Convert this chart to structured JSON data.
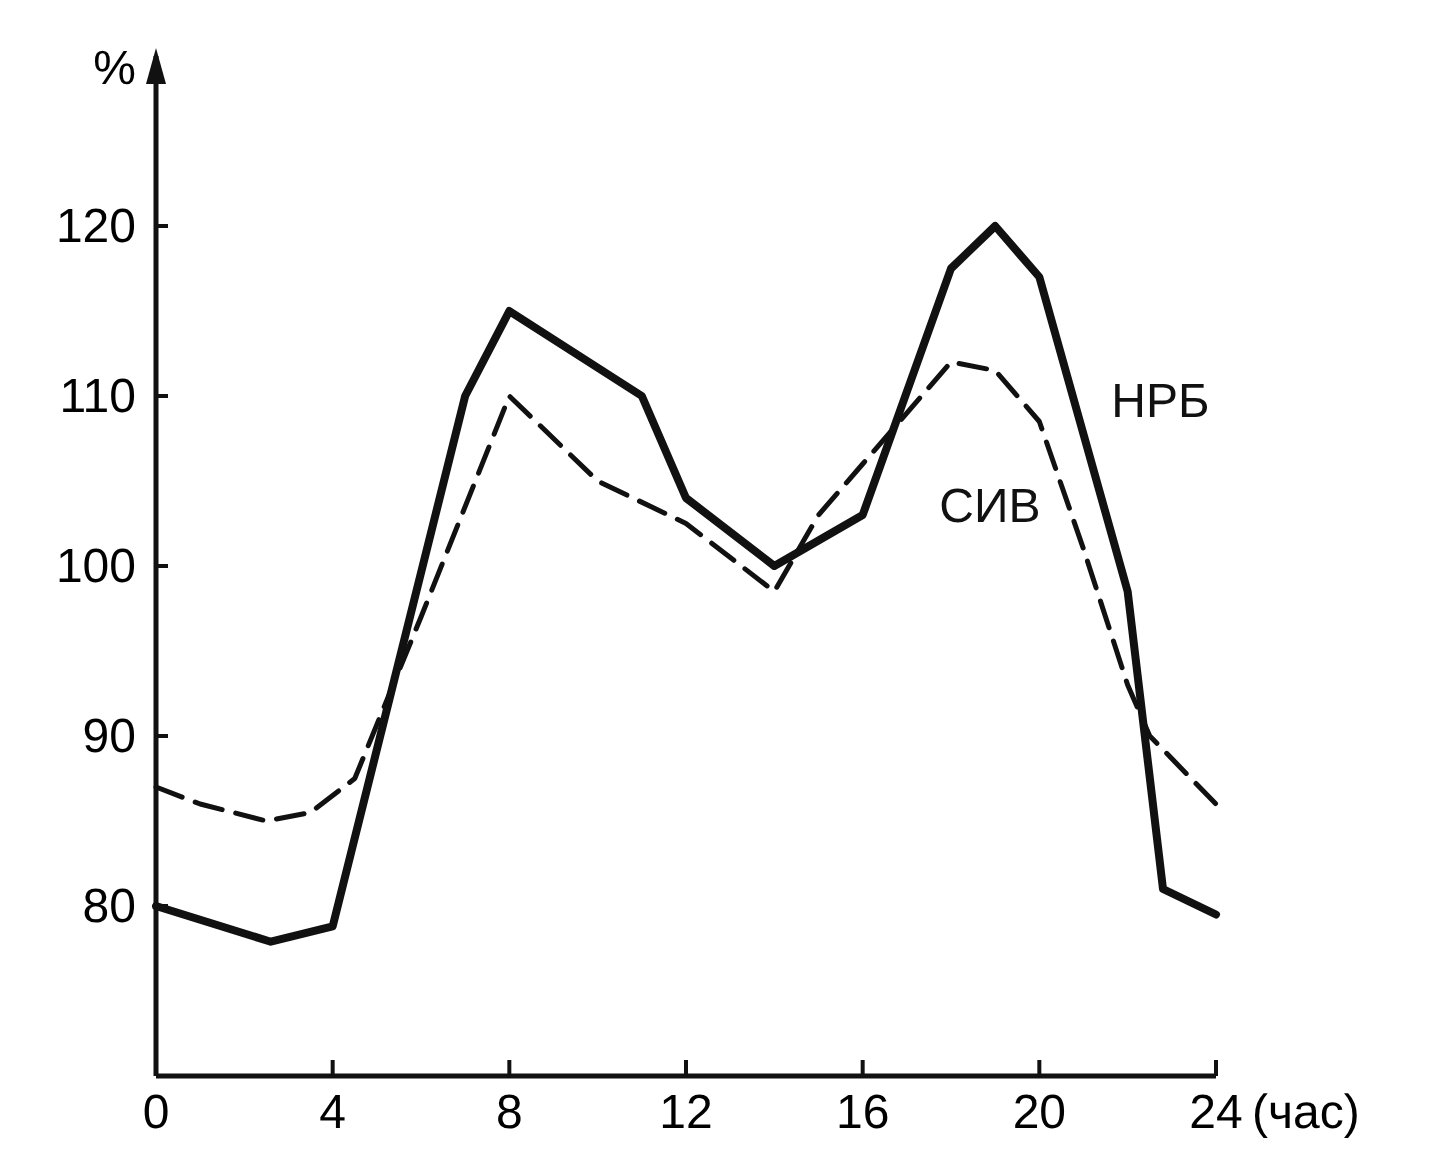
{
  "chart_data": {
    "type": "line",
    "ylabel": "%",
    "xlabel": "(час)",
    "xlim": [
      0,
      24
    ],
    "ylim": [
      70,
      130
    ],
    "xticks": [
      0,
      4,
      8,
      12,
      16,
      20,
      24
    ],
    "yticks": [
      80,
      90,
      100,
      110,
      120
    ],
    "grid": false,
    "series": [
      {
        "name": "НРБ",
        "color": "#111111",
        "line_style": "solid",
        "x": [
          0,
          2.6,
          4,
          7,
          8,
          11,
          12,
          14,
          16,
          18,
          19,
          20,
          22,
          22.8,
          24
        ],
        "values": [
          80,
          77.9,
          78.8,
          110,
          115,
          110,
          104,
          100,
          103,
          117.5,
          120,
          117,
          98.5,
          81,
          79.5
        ]
      },
      {
        "name": "СИВ",
        "color": "#111111",
        "line_style": "dashed",
        "x": [
          0,
          1,
          2.5,
          3.5,
          4.5,
          6,
          8,
          10,
          12,
          14,
          15,
          16,
          18,
          19,
          20,
          21,
          22,
          22.5,
          24
        ],
        "values": [
          87,
          86,
          85,
          85.5,
          87.5,
          97,
          110,
          105,
          102.5,
          98.5,
          103,
          106,
          112,
          111.5,
          108.5,
          101,
          93,
          90,
          86
        ]
      }
    ]
  }
}
